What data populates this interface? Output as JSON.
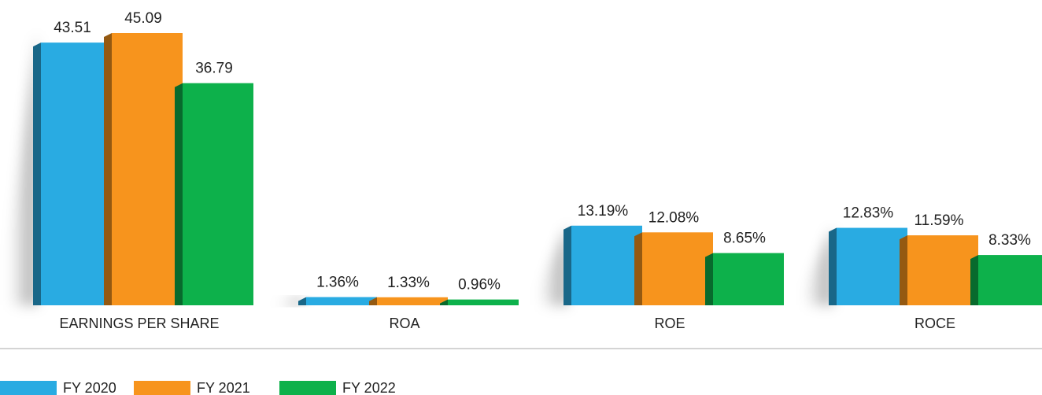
{
  "chart_data": {
    "type": "bar",
    "categories": [
      "EARNINGS PER SHARE",
      "ROA",
      "ROE",
      "ROCE"
    ],
    "series": [
      {
        "name": "FY 2020",
        "color": "#29abe2",
        "values": [
          43.51,
          1.36,
          13.19,
          12.83
        ],
        "value_labels": [
          "43.51",
          "1.36%",
          "13.19%",
          "12.83%"
        ]
      },
      {
        "name": "FY 2021",
        "color": "#f7941d",
        "values": [
          45.09,
          1.33,
          12.08,
          11.59
        ],
        "value_labels": [
          "45.09",
          "1.33%",
          "12.08%",
          "11.59%"
        ]
      },
      {
        "name": "FY 2022",
        "color": "#0db14b",
        "values": [
          36.79,
          0.96,
          8.65,
          8.33
        ],
        "value_labels": [
          "36.79",
          "0.96%",
          "8.65%",
          "8.33%"
        ]
      }
    ],
    "legend": "bottom-left"
  }
}
